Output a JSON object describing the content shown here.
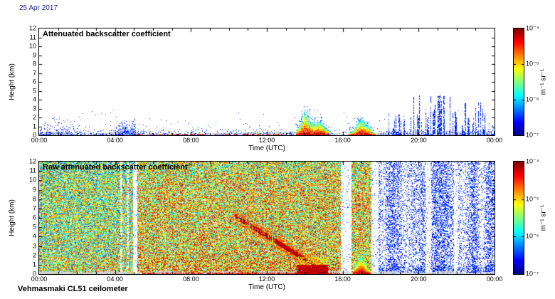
{
  "figure": {
    "date_label": "25 Apr 2017",
    "instrument_label": "Vehmasmaki CL51 ceilometer",
    "background": "#ffffff",
    "text_color": "#000000",
    "date_color": "#1f1f8f"
  },
  "chart_data": [
    {
      "type": "heatmap",
      "title": "Attenuated backscatter coefficient",
      "xlabel": "Time (UTC)",
      "ylabel": "Height (km)",
      "x_ticks": [
        "00:00",
        "04:00",
        "08:00",
        "12:00",
        "16:00",
        "20:00",
        "00:00"
      ],
      "x_range_hours": [
        0,
        24
      ],
      "y_ticks": [
        0,
        1,
        2,
        3,
        4,
        5,
        6,
        7,
        8,
        9,
        10,
        11,
        12
      ],
      "ylim": [
        0,
        12
      ],
      "grid": false,
      "colorbar": {
        "label": "m⁻¹ sr⁻¹",
        "ticks": [
          "10⁻⁴",
          "10⁻⁵",
          "10⁻⁶",
          "10⁻⁷"
        ],
        "scale": "log",
        "colormap": "jet",
        "range": [
          "1e-7",
          "1e-4"
        ]
      },
      "features": {
        "surface_gray_band_top_km": 0.3,
        "aerosol_layer": {
          "t_hours": [
            0,
            5.1
          ],
          "top_km": 1.3,
          "note": "weak blue speckle boundary-layer aerosol"
        },
        "dense_block": {
          "t_hours": [
            4.15,
            5.08
          ],
          "top_km": 1.6,
          "note": "denser blue block ending sharply at ~05:00"
        },
        "daytime_shallow_layer": {
          "t_hours": [
            5.1,
            13.6
          ],
          "top_km": 0.5,
          "note": "thin intermittent orange-red surface returns"
        },
        "cloud_precip_1": {
          "t_hours": [
            13.5,
            15.3
          ],
          "top_km": 3.2,
          "note": "low cloud / precipitation, red core, green-blue top"
        },
        "cloud_precip_2": {
          "t_hours": [
            16.3,
            17.7
          ],
          "top_km": 2.0,
          "note": "low cloud with red core"
        },
        "evening_spikes": {
          "t_hours": [
            18.4,
            23.5
          ],
          "max_top_km": 4.5,
          "note": "narrow vertical blue noise spikes"
        }
      }
    },
    {
      "type": "heatmap",
      "title": "Raw attenuated backscatter coefficient",
      "xlabel": "Time (UTC)",
      "ylabel": "Height (km)",
      "x_ticks": [
        "00:00",
        "04:00",
        "08:00",
        "12:00",
        "16:00",
        "20:00",
        "00:00"
      ],
      "x_range_hours": [
        0,
        24
      ],
      "y_ticks": [
        0,
        1,
        2,
        3,
        4,
        5,
        6,
        7,
        8,
        9,
        10,
        11,
        12
      ],
      "ylim": [
        0,
        12
      ],
      "grid": false,
      "colorbar": {
        "label": "m⁻¹ sr⁻¹",
        "ticks": [
          "10⁻⁴",
          "10⁻⁵",
          "10⁻⁶",
          "10⁻⁷"
        ],
        "scale": "log",
        "colormap": "jet",
        "range": [
          "1e-7",
          "1e-4"
        ]
      },
      "features": {
        "noise_field": "dense multicolour speckle over whole panel (raw uncalibrated signal)",
        "surface_gray_band_top_km": 0.25,
        "data_gap_hours": [
          [
            4.93,
            5.17
          ],
          [
            15.9,
            16.45
          ],
          [
            17.5,
            17.85
          ]
        ],
        "low_density_column_hours": [
          [
            4.27,
            4.38
          ],
          [
            4.6,
            4.7
          ],
          [
            20.35,
            20.65
          ],
          [
            21.85,
            22.05
          ]
        ],
        "low_gain_start_hour": 17.85,
        "descending_band": {
          "from": [
            10.3,
            6.2
          ],
          "to": [
            15.0,
            0.3
          ],
          "note": "dark-red band descending from ~6 km to surface"
        },
        "surface_red_layer_hours": [
          5.4,
          15.85
        ],
        "cloud_precip_1_hours": [
          13.55,
          15.2
        ],
        "cloud_precip_2_hours": [
          16.5,
          17.45
        ]
      }
    }
  ]
}
